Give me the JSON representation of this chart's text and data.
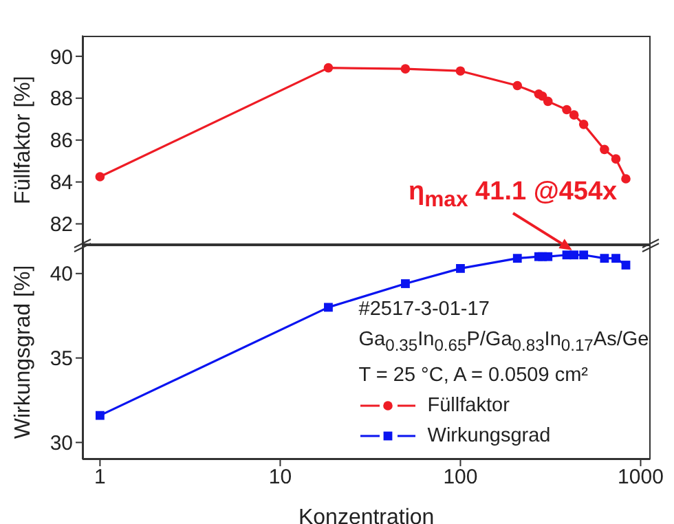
{
  "chart_data": [
    {
      "type": "line",
      "ylabel": "Füllfaktor [%]",
      "x": [
        1,
        18.5,
        49.5,
        100,
        207,
        272,
        285,
        306,
        389,
        427,
        483,
        630,
        729,
        828
      ],
      "series": [
        {
          "name": "Füllfaktor",
          "color": "#ee1c25",
          "marker": "circle",
          "values": [
            84.25,
            89.45,
            89.4,
            89.3,
            88.6,
            88.2,
            88.1,
            87.85,
            87.45,
            87.2,
            86.75,
            85.55,
            85.1,
            84.15
          ]
        }
      ],
      "xlim": [
        0.8,
        1130
      ],
      "xticks": [
        1,
        10,
        100,
        1000
      ],
      "ylim": [
        81,
        91
      ],
      "yticks": [
        82,
        84,
        86,
        88,
        90
      ],
      "log": "x",
      "tick_labels": "y",
      "grid": false
    },
    {
      "type": "line",
      "ylabel": "Wirkungsgrad [%]",
      "xlabel": "Konzentration",
      "x": [
        1,
        18.5,
        49.5,
        100,
        207,
        272,
        285,
        306,
        389,
        427,
        483,
        630,
        729,
        828
      ],
      "series": [
        {
          "name": "Wirkungsgrad",
          "color": "#0a14f0",
          "marker": "square",
          "values": [
            31.6,
            38.0,
            39.4,
            40.3,
            40.9,
            41.0,
            41.0,
            41.0,
            41.1,
            41.1,
            41.1,
            40.9,
            40.9,
            40.5
          ]
        }
      ],
      "xlim": [
        0.8,
        1130
      ],
      "xticks": [
        1,
        10,
        100,
        1000
      ],
      "ylim": [
        29,
        41.7
      ],
      "yticks": [
        30,
        35,
        40
      ],
      "log": "x",
      "grid": false,
      "legend": "bottom right",
      "annotations": [
        {
          "text": "η$_{max}$ 41.1 @454x",
          "x": 454,
          "y": 41.1
        },
        "#2517-3-01-17",
        "Ga$_{0.35}$In$_{0.65}$P/Ga$_{0.83}$In$_{0.17}$As/Ge",
        "T = 25 °C, A = 0.0509 cm²"
      ]
    }
  ]
}
